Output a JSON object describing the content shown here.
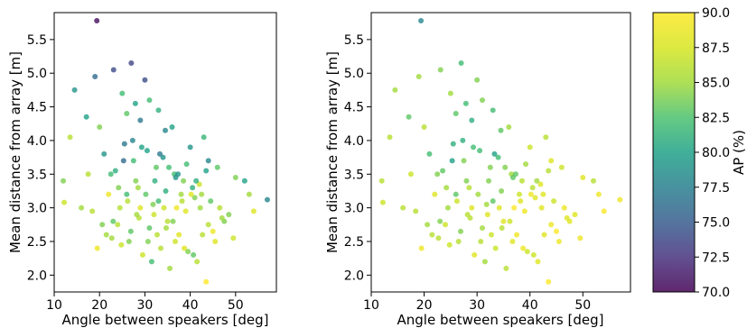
{
  "chart_data": [
    {
      "type": "scatter",
      "xlabel": "Angle between speakers [deg]",
      "ylabel": "Mean distance from array [m]",
      "xlim": [
        10,
        59
      ],
      "ylim": [
        1.75,
        5.9
      ],
      "xticks": [
        "10",
        "20",
        "30",
        "40",
        "50"
      ],
      "yticks": [
        "2.0",
        "2.5",
        "3.0",
        "3.5",
        "4.0",
        "4.5",
        "5.0",
        "5.5"
      ],
      "color_encoding": "AP (%)",
      "colormap": "viridis",
      "series": [
        {
          "x": [
            19.4,
            12.0,
            14.5,
            17.1,
            17.5,
            19.0,
            20.0,
            23.1,
            27.0,
            25.0,
            26.0,
            30.0,
            27.9,
            29.0,
            31.0,
            33.0,
            28.5,
            34.5,
            36.0,
            40.0,
            43.0,
            44.0,
            46.0,
            50.0,
            52.0,
            57.0,
            53.0,
            54.0,
            13.5,
            12.2,
            16.0,
            22.0,
            24.0,
            26.5,
            29.5,
            31.5,
            33.5,
            35.5,
            37.5,
            39.5,
            41.5,
            43.5,
            45.5,
            47.5,
            49.5,
            21.0,
            23.5,
            25.5,
            27.5,
            30.5,
            32.5,
            34.0,
            36.5,
            38.5,
            40.5,
            42.5,
            44.5,
            46.5,
            48.5,
            19.5,
            21.5,
            23.0,
            24.5,
            26.0,
            28.0,
            29.0,
            31.0,
            32.0,
            33.0,
            35.0,
            37.0,
            38.0,
            39.0,
            41.0,
            42.0,
            44.0,
            45.0,
            47.0,
            43.5,
            39.2,
            36.8,
            34.6,
            31.8,
            28.7,
            26.9,
            24.8,
            22.7,
            20.6,
            18.4,
            25.3,
            27.3,
            29.3,
            33.3,
            35.3,
            37.3,
            41.3,
            30.7,
            32.7,
            34.7,
            36.7,
            38.7,
            40.7,
            42.7,
            22.5,
            24.2,
            26.2,
            28.2,
            30.2,
            32.2,
            34.2,
            36.2,
            38.2,
            40.2,
            42.2
          ],
          "y": [
            5.78,
            3.4,
            4.75,
            4.35,
            3.5,
            4.95,
            4.2,
            5.05,
            5.15,
            4.7,
            4.4,
            4.9,
            4.55,
            4.3,
            4.6,
            4.45,
            3.3,
            4.15,
            4.2,
            3.9,
            4.05,
            3.7,
            3.6,
            3.45,
            3.4,
            3.12,
            3.2,
            2.95,
            4.05,
            3.08,
            3.0,
            3.2,
            2.75,
            2.5,
            2.3,
            2.2,
            2.4,
            2.1,
            2.6,
            2.35,
            2.2,
            1.9,
            2.5,
            2.8,
            2.55,
            3.8,
            3.55,
            3.95,
            3.7,
            3.85,
            3.6,
            3.75,
            3.5,
            3.4,
            3.3,
            3.2,
            3.1,
            3.0,
            2.9,
            2.4,
            2.6,
            2.8,
            3.0,
            3.2,
            3.4,
            3.0,
            2.7,
            2.9,
            3.1,
            2.8,
            3.0,
            3.2,
            2.95,
            3.15,
            3.35,
            2.75,
            2.65,
            2.85,
            3.55,
            3.65,
            3.45,
            3.25,
            3.05,
            2.85,
            2.65,
            2.45,
            2.55,
            2.75,
            2.95,
            3.7,
            4.0,
            3.9,
            3.8,
            3.6,
            3.5,
            3.4,
            2.5,
            2.6,
            2.7,
            2.5,
            2.4,
            2.3,
            2.6,
            3.5,
            3.3,
            3.1,
            2.9,
            3.2,
            3.4,
            3.0,
            2.8,
            3.1,
            3.2,
            3.0
          ],
          "c": [
            70.5,
            84.0,
            79.0,
            80.0,
            86.0,
            76.0,
            84.0,
            74.0,
            73.5,
            82.0,
            83.0,
            74.0,
            80.0,
            77.0,
            82.0,
            81.0,
            85.0,
            78.0,
            80.0,
            79.0,
            81.5,
            78.0,
            83.0,
            84.0,
            80.0,
            78.0,
            85.0,
            88.0,
            86.0,
            87.0,
            85.0,
            89.0,
            86.0,
            84.0,
            87.0,
            82.0,
            86.0,
            85.0,
            88.0,
            84.0,
            86.0,
            90.0,
            88.0,
            84.0,
            87.0,
            79.0,
            81.0,
            77.0,
            82.0,
            80.0,
            83.0,
            79.0,
            82.0,
            84.0,
            81.0,
            85.0,
            83.0,
            86.0,
            84.0,
            89.0,
            85.0,
            83.0,
            86.0,
            82.0,
            84.0,
            88.0,
            83.0,
            87.0,
            82.0,
            86.0,
            89.0,
            85.0,
            88.0,
            84.0,
            87.0,
            86.0,
            89.0,
            85.0,
            80.0,
            82.0,
            79.0,
            81.0,
            84.0,
            86.0,
            83.0,
            87.0,
            85.0,
            84.0,
            86.0,
            76.0,
            78.0,
            80.0,
            77.0,
            82.0,
            79.0,
            81.0,
            84.0,
            86.0,
            85.0,
            87.0,
            88.0,
            83.0,
            86.0,
            82.0,
            84.0,
            86.0,
            85.0,
            83.0,
            81.0,
            87.0,
            84.0,
            86.0,
            88.0,
            85.0
          ]
        }
      ]
    },
    {
      "type": "scatter",
      "xlabel": "Angle between speakers [deg]",
      "ylabel": "Mean distance from array [m]",
      "xlim": [
        10,
        59
      ],
      "ylim": [
        1.75,
        5.9
      ],
      "xticks": [
        "10",
        "20",
        "30",
        "40",
        "50"
      ],
      "yticks": [
        "2.0",
        "2.5",
        "3.0",
        "3.5",
        "4.0",
        "4.5",
        "5.0",
        "5.5"
      ],
      "color_encoding": "AP (%)",
      "colormap": "viridis",
      "series": [
        {
          "x": [
            19.4,
            12.0,
            14.5,
            17.1,
            17.5,
            19.0,
            20.0,
            23.1,
            27.0,
            25.0,
            26.0,
            30.0,
            27.9,
            29.0,
            31.0,
            33.0,
            28.5,
            34.5,
            36.0,
            40.0,
            43.0,
            44.0,
            46.0,
            50.0,
            52.0,
            57.0,
            53.0,
            54.0,
            13.5,
            12.2,
            16.0,
            22.0,
            24.0,
            26.5,
            29.5,
            31.5,
            33.5,
            35.5,
            37.5,
            39.5,
            41.5,
            43.5,
            45.5,
            47.5,
            49.5,
            21.0,
            23.5,
            25.5,
            27.5,
            30.5,
            32.5,
            34.0,
            36.5,
            38.5,
            40.5,
            42.5,
            44.5,
            46.5,
            48.5,
            19.5,
            21.5,
            23.0,
            24.5,
            26.0,
            28.0,
            29.0,
            31.0,
            32.0,
            33.0,
            35.0,
            37.0,
            38.0,
            39.0,
            41.0,
            42.0,
            44.0,
            45.0,
            47.0,
            43.5,
            39.2,
            36.8,
            34.6,
            31.8,
            28.7,
            26.9,
            24.8,
            22.7,
            20.6,
            18.4,
            25.3,
            27.3,
            29.3,
            33.3,
            35.3,
            37.3,
            41.3,
            30.7,
            32.7,
            34.7,
            36.7,
            38.7,
            40.7,
            42.7,
            22.5,
            24.2,
            26.2,
            28.2,
            30.2,
            32.2,
            34.2,
            36.2,
            38.2,
            40.2,
            42.2
          ],
          "y": [
            5.78,
            3.4,
            4.75,
            4.35,
            3.5,
            4.95,
            4.2,
            5.05,
            5.15,
            4.7,
            4.4,
            4.9,
            4.55,
            4.3,
            4.6,
            4.45,
            3.3,
            4.15,
            4.2,
            3.9,
            4.05,
            3.7,
            3.6,
            3.45,
            3.4,
            3.12,
            3.2,
            2.95,
            4.05,
            3.08,
            3.0,
            3.2,
            2.75,
            2.5,
            2.3,
            2.2,
            2.4,
            2.1,
            2.6,
            2.35,
            2.2,
            1.9,
            2.5,
            2.8,
            2.55,
            3.8,
            3.55,
            3.95,
            3.7,
            3.85,
            3.6,
            3.75,
            3.5,
            3.4,
            3.3,
            3.2,
            3.1,
            3.0,
            2.9,
            2.4,
            2.6,
            2.8,
            3.0,
            3.2,
            3.4,
            3.0,
            2.7,
            2.9,
            3.1,
            2.8,
            3.0,
            3.2,
            2.95,
            3.15,
            3.35,
            2.75,
            2.65,
            2.85,
            3.55,
            3.65,
            3.45,
            3.25,
            3.05,
            2.85,
            2.65,
            2.45,
            2.55,
            2.75,
            2.95,
            3.7,
            4.0,
            3.9,
            3.8,
            3.6,
            3.5,
            3.4,
            2.5,
            2.6,
            2.7,
            2.5,
            2.4,
            2.3,
            2.6,
            3.5,
            3.3,
            3.1,
            2.9,
            3.2,
            3.4,
            3.0,
            2.8,
            3.1,
            3.2,
            3.0
          ],
          "c": [
            78.0,
            86.0,
            85.0,
            83.0,
            87.0,
            85.0,
            86.0,
            84.0,
            82.0,
            85.0,
            83.0,
            84.0,
            82.0,
            81.0,
            84.0,
            82.0,
            86.0,
            83.0,
            85.0,
            87.0,
            86.0,
            88.0,
            87.0,
            88.0,
            86.0,
            89.0,
            89.0,
            90.0,
            86.0,
            87.0,
            86.0,
            88.0,
            87.0,
            86.0,
            88.0,
            85.0,
            87.0,
            86.0,
            89.0,
            87.0,
            88.0,
            90.0,
            89.0,
            88.0,
            89.0,
            82.0,
            83.0,
            81.0,
            84.0,
            82.0,
            84.0,
            82.0,
            85.0,
            86.0,
            86.0,
            88.0,
            87.0,
            89.0,
            88.0,
            89.0,
            86.0,
            84.0,
            85.0,
            83.0,
            84.0,
            88.0,
            85.0,
            88.0,
            83.0,
            88.0,
            90.0,
            87.0,
            89.0,
            88.0,
            88.0,
            89.0,
            90.0,
            88.0,
            86.0,
            85.0,
            83.0,
            84.0,
            85.0,
            86.0,
            84.0,
            87.0,
            86.0,
            85.0,
            86.0,
            80.0,
            81.0,
            82.0,
            80.0,
            84.0,
            83.0,
            85.0,
            86.0,
            87.0,
            86.0,
            88.0,
            89.0,
            87.0,
            88.0,
            84.0,
            85.0,
            87.0,
            86.0,
            85.0,
            84.0,
            88.0,
            87.0,
            88.0,
            89.0,
            88.0
          ]
        }
      ]
    }
  ],
  "colorbar": {
    "label": "AP (%)",
    "range": [
      70.0,
      90.0
    ],
    "ticks": [
      "70.0",
      "72.5",
      "75.0",
      "77.5",
      "80.0",
      "82.5",
      "85.0",
      "87.5",
      "90.0"
    ],
    "colormap": "viridis"
  }
}
